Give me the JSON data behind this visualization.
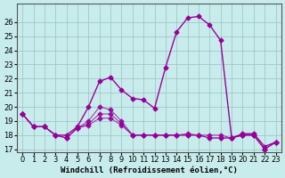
{
  "xlabel": "Windchill (Refroidissement éolien,°C)",
  "ylabel": "",
  "background_color": "#c8ecec",
  "grid_color": "#a0c8c8",
  "line_color": "#990099",
  "x_hours": [
    0,
    1,
    2,
    3,
    4,
    5,
    6,
    7,
    8,
    9,
    10,
    11,
    12,
    13,
    14,
    15,
    16,
    17,
    18,
    19,
    20,
    21,
    22,
    23
  ],
  "series": {
    "temp": [
      19.5,
      18.6,
      18.6,
      18.0,
      18.0,
      18.6,
      20.0,
      21.8,
      22.1,
      21.2,
      20.6,
      20.5,
      19.9,
      22.8,
      25.3,
      26.3,
      26.4,
      25.8,
      24.7,
      17.8,
      18.1,
      18.1,
      17.2,
      17.5
    ],
    "windchill": [
      19.5,
      18.6,
      18.6,
      18.0,
      17.8,
      18.5,
      19.0,
      20.0,
      19.8,
      19.0,
      18.0,
      18.0,
      18.0,
      18.0,
      18.0,
      18.1,
      18.0,
      18.0,
      18.0,
      17.8,
      18.0,
      18.0,
      17.0,
      17.5
    ],
    "dewpoint": [
      19.5,
      18.6,
      18.6,
      18.0,
      17.8,
      18.5,
      18.8,
      19.5,
      19.5,
      18.8,
      18.0,
      18.0,
      18.0,
      18.0,
      18.0,
      18.0,
      18.0,
      17.8,
      17.8,
      17.8,
      18.0,
      18.0,
      17.0,
      17.5
    ],
    "apparent": [
      19.5,
      18.6,
      18.6,
      18.0,
      17.8,
      18.5,
      18.7,
      19.2,
      19.2,
      18.7,
      18.0,
      18.0,
      18.0,
      18.0,
      18.0,
      18.0,
      18.0,
      17.8,
      17.8,
      17.8,
      18.0,
      18.0,
      17.0,
      17.5
    ]
  },
  "xlim": [
    -0.5,
    23.5
  ],
  "ylim": [
    17,
    27
  ],
  "yticks": [
    17,
    18,
    19,
    20,
    21,
    22,
    23,
    24,
    25,
    26
  ],
  "xticks": [
    0,
    1,
    2,
    3,
    4,
    5,
    6,
    7,
    8,
    9,
    10,
    11,
    12,
    13,
    14,
    15,
    16,
    17,
    18,
    19,
    20,
    21,
    22,
    23
  ],
  "tick_fontsize": 6,
  "label_fontsize": 6.5
}
